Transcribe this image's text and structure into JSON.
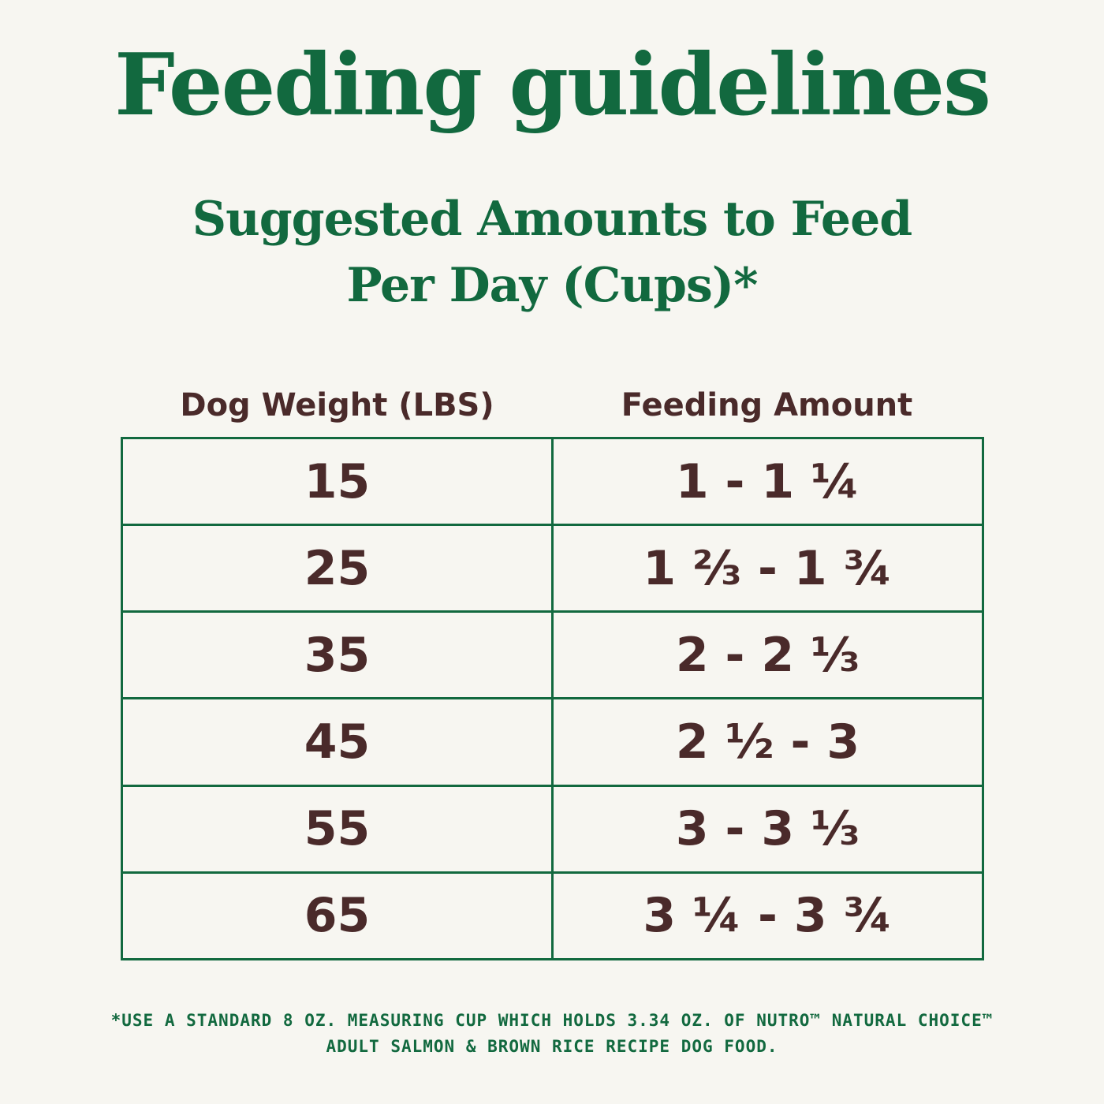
{
  "title": "Feeding guidelines",
  "subtitle": {
    "line1": "Suggested Amounts to Feed",
    "line2": "Per Day (Cups)*"
  },
  "table": {
    "headers": {
      "weight": "Dog Weight (LBS)",
      "amount": "Feeding Amount"
    },
    "rows": [
      {
        "weight": "15",
        "amount": "1 - 1 ¼"
      },
      {
        "weight": "25",
        "amount": "1 ⅔ - 1 ¾"
      },
      {
        "weight": "35",
        "amount": "2 - 2 ⅓"
      },
      {
        "weight": "45",
        "amount": "2 ½ - 3"
      },
      {
        "weight": "55",
        "amount": "3 - 3 ⅓"
      },
      {
        "weight": "65",
        "amount": "3 ¼ - 3 ¾"
      }
    ]
  },
  "footnote": {
    "line1": "*USE A STANDARD 8 OZ. MEASURING CUP WHICH HOLDS 3.34 OZ. OF NUTRO™ NATURAL CHOICE™",
    "line2": "ADULT SALMON & BROWN RICE RECIPE DOG FOOD."
  },
  "colors": {
    "green": "#12693f",
    "brown": "#4a2a2a",
    "background": "#f7f6f1"
  }
}
